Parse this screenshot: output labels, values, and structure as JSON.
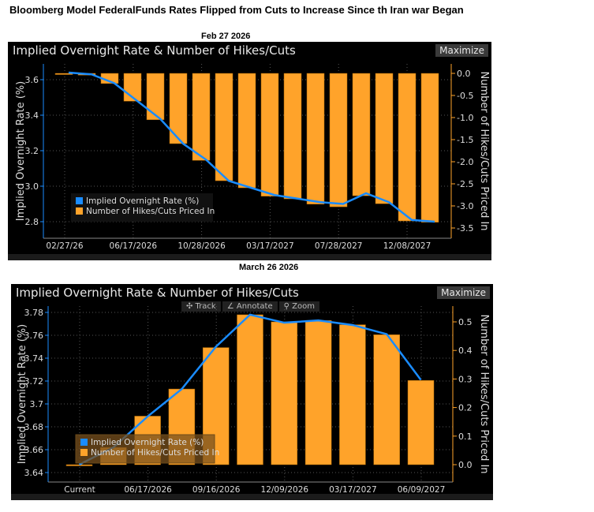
{
  "headline": "Bloomberg Model FederalFunds Rates Flipped from Cuts to Increase Since th Iran war Began",
  "colors": {
    "line": "#1a8cff",
    "bars": "#ffa32a",
    "background": "#000000",
    "left_axis": "#1a8cff",
    "right_axis": "#ffa32a"
  },
  "chart_data": [
    {
      "caption": "Feb 27 2026",
      "type": "bar+line",
      "title": "Implied Overnight Rate & Number of Hikes/Cuts",
      "maximize_label": "Maximize",
      "ylabel_left": "Implied Overnight Rate (%)",
      "ylabel_right": "Number of Hikes/Cuts Priced In",
      "left_ticks": [
        "3.6",
        "3.4",
        "3.2",
        "3.0",
        "2.8"
      ],
      "right_ticks": [
        "0.0",
        "-0.5",
        "-1.0",
        "-1.5",
        "-2.0",
        "-2.5",
        "-3.0",
        "-3.5"
      ],
      "x_ticks": [
        "02/27/26",
        "06/17/2026",
        "10/28/2026",
        "03/17/2027",
        "07/28/2027",
        "12/08/2027"
      ],
      "legend": [
        "Implied Overnight Rate (%)",
        "Number of Hikes/Cuts Priced In"
      ],
      "series": [
        {
          "name": "Implied Overnight Rate (%)",
          "type": "line",
          "axis": "left",
          "values": [
            3.64,
            3.63,
            3.58,
            3.48,
            3.38,
            3.24,
            3.15,
            3.03,
            2.99,
            2.95,
            2.93,
            2.91,
            2.9,
            2.96,
            2.91,
            2.81,
            2.8
          ]
        },
        {
          "name": "Number of Hikes/Cuts Priced In",
          "type": "bar",
          "axis": "right",
          "values": [
            0.0,
            -0.04,
            -0.23,
            -0.63,
            -1.05,
            -1.59,
            -1.97,
            -2.43,
            -2.59,
            -2.78,
            -2.84,
            -2.96,
            -3.02,
            -2.77,
            -2.95,
            -3.34,
            -3.37
          ]
        }
      ],
      "ylim_left": [
        2.75,
        3.7
      ],
      "ylim_right": [
        -3.5,
        0.0
      ],
      "grid": true,
      "legend_position": "bottom-left"
    },
    {
      "caption": "March 26 2026",
      "type": "bar+line",
      "title": "Implied Overnight Rate & Number of Hikes/Cuts",
      "maximize_label": "Maximize",
      "toolbar": [
        "✣ Track",
        "∠ Annotate",
        "⚲ Zoom"
      ],
      "ylabel_left": "Implied Overnight Rate (%)",
      "ylabel_right": "Number of Hikes/Cuts Priced In",
      "left_ticks": [
        "3.78",
        "3.76",
        "3.74",
        "3.72",
        "3.7",
        "3.68",
        "3.66",
        "3.64"
      ],
      "right_ticks": [
        "0.5",
        "0.4",
        "0.3",
        "0.2",
        "0.1",
        "0.0"
      ],
      "x_ticks": [
        "Current",
        "06/17/2026",
        "09/16/2026",
        "12/09/2026",
        "03/17/2027",
        "06/09/2027"
      ],
      "legend": [
        "Implied Overnight Rate (%)",
        "Number of Hikes/Cuts Priced In"
      ],
      "series": [
        {
          "name": "Implied Overnight Rate (%)",
          "type": "line",
          "axis": "left",
          "values": [
            3.647,
            3.662,
            3.689,
            3.713,
            3.75,
            3.778,
            3.771,
            3.773,
            3.769,
            3.761,
            3.721
          ]
        },
        {
          "name": "Number of Hikes/Cuts Priced In",
          "type": "bar",
          "axis": "right",
          "values": [
            0.0,
            0.06,
            0.17,
            0.265,
            0.41,
            0.525,
            0.5,
            0.505,
            0.49,
            0.455,
            0.295
          ]
        }
      ],
      "ylim_left": [
        3.635,
        3.79
      ],
      "ylim_right": [
        0.0,
        0.55
      ],
      "grid": true,
      "legend_position": "bottom-left"
    }
  ]
}
